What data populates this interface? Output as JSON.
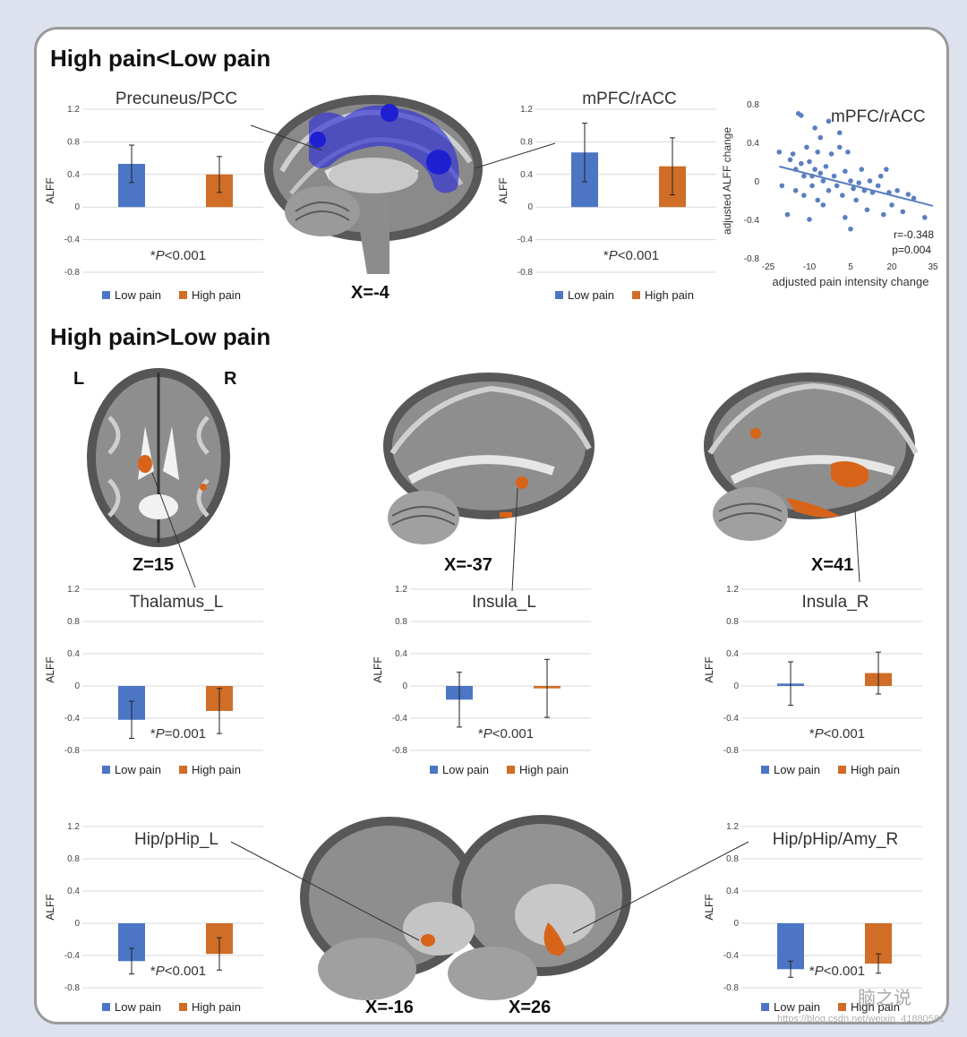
{
  "headings": {
    "top": "High pain<Low pain",
    "bottom": "High pain>Low pain"
  },
  "colors": {
    "low": "#4c76c4",
    "high": "#d06d26",
    "scatter": "#5b7fc0",
    "blob_blue": "#2324d8",
    "blob_orange": "#d8641a"
  },
  "legend": {
    "low": "Low pain",
    "high": "High pain"
  },
  "axis": {
    "ylabel": "ALFF",
    "ylim": [
      -0.8,
      1.2
    ],
    "ticks": [
      "1.2",
      "0.8",
      "0.4",
      "0",
      "-0.4",
      "-0.8"
    ]
  },
  "brain_labels": {
    "sag_top": "X=-4",
    "axial": "Z=15",
    "left": "L",
    "right": "R",
    "insL": "X=-37",
    "insR": "X=41",
    "hipL": "X=-16",
    "hipR": "X=26"
  },
  "chart_data": [
    {
      "type": "bar",
      "title": "Precuneus/PCC",
      "categories": [
        "Low pain",
        "High pain"
      ],
      "values": [
        0.53,
        0.4
      ],
      "error_bars": [
        0.23,
        0.22
      ],
      "pvalue": "P<0.001",
      "ylabel": "ALFF",
      "ylim": [
        -0.8,
        1.2
      ]
    },
    {
      "type": "bar",
      "title": "mPFC/rACC",
      "categories": [
        "Low pain",
        "High pain"
      ],
      "values": [
        0.67,
        0.5
      ],
      "error_bars": [
        0.36,
        0.35
      ],
      "pvalue": "P<0.001",
      "ylabel": "ALFF",
      "ylim": [
        -0.8,
        1.2
      ]
    },
    {
      "type": "scatter",
      "title": "mPFC/rACC",
      "xlabel": "adjusted pain intensity change",
      "ylabel": "adjusted ALFF change",
      "xlim": [
        -25,
        35
      ],
      "ylim": [
        -0.8,
        0.8
      ],
      "xticks": [
        "-25",
        "-10",
        "5",
        "20",
        "35"
      ],
      "yticks": [
        "0.8",
        "0.4",
        "0",
        "-0.4",
        "-0.8"
      ],
      "stat_r": "r=-0.348",
      "stat_p": "p=0.004",
      "points": [
        [
          -21,
          0.3
        ],
        [
          -20,
          -0.05
        ],
        [
          -18,
          -0.35
        ],
        [
          -17,
          0.22
        ],
        [
          -16,
          0.28
        ],
        [
          -15,
          0.12
        ],
        [
          -15,
          -0.1
        ],
        [
          -14,
          0.7
        ],
        [
          -13,
          0.68
        ],
        [
          -13,
          0.18
        ],
        [
          -12,
          -0.15
        ],
        [
          -12,
          0.05
        ],
        [
          -11,
          0.35
        ],
        [
          -10,
          -0.4
        ],
        [
          -10,
          0.2
        ],
        [
          -9,
          0.05
        ],
        [
          -9,
          -0.05
        ],
        [
          -8,
          0.12
        ],
        [
          -8,
          0.55
        ],
        [
          -7,
          -0.2
        ],
        [
          -7,
          0.3
        ],
        [
          -6,
          0.08
        ],
        [
          -6,
          0.45
        ],
        [
          -5,
          0.0
        ],
        [
          -5,
          -0.25
        ],
        [
          -4,
          0.15
        ],
        [
          -3,
          0.62
        ],
        [
          -3,
          -0.1
        ],
        [
          -2,
          0.28
        ],
        [
          -1,
          0.05
        ],
        [
          0,
          -0.05
        ],
        [
          1,
          0.5
        ],
        [
          1,
          0.35
        ],
        [
          2,
          -0.15
        ],
        [
          3,
          0.1
        ],
        [
          3,
          -0.38
        ],
        [
          4,
          0.3
        ],
        [
          5,
          0.0
        ],
        [
          5,
          -0.5
        ],
        [
          6,
          -0.08
        ],
        [
          7,
          -0.2
        ],
        [
          8,
          -0.02
        ],
        [
          9,
          0.12
        ],
        [
          10,
          -0.1
        ],
        [
          11,
          -0.3
        ],
        [
          12,
          0.0
        ],
        [
          13,
          -0.12
        ],
        [
          15,
          -0.05
        ],
        [
          16,
          0.05
        ],
        [
          17,
          -0.35
        ],
        [
          18,
          0.12
        ],
        [
          19,
          -0.12
        ],
        [
          20,
          -0.25
        ],
        [
          22,
          -0.1
        ],
        [
          24,
          -0.32
        ],
        [
          26,
          -0.14
        ],
        [
          28,
          -0.18
        ],
        [
          32,
          -0.38
        ]
      ],
      "fit": [
        [
          -21,
          0.15
        ],
        [
          35,
          -0.26
        ]
      ]
    },
    {
      "type": "bar",
      "title": "Thalamus_L",
      "categories": [
        "Low pain",
        "High pain"
      ],
      "values": [
        -0.42,
        -0.31
      ],
      "error_bars": [
        0.23,
        0.28
      ],
      "pvalue": "P=0.001",
      "ylabel": "ALFF",
      "ylim": [
        -0.8,
        1.2
      ]
    },
    {
      "type": "bar",
      "title": "Insula_L",
      "categories": [
        "Low pain",
        "High pain"
      ],
      "values": [
        -0.17,
        -0.03
      ],
      "error_bars": [
        0.34,
        0.36
      ],
      "pvalue": "P<0.001",
      "ylabel": "ALFF",
      "ylim": [
        -0.8,
        1.2
      ]
    },
    {
      "type": "bar",
      "title": "Insula_R",
      "categories": [
        "Low pain",
        "High pain"
      ],
      "values": [
        0.03,
        0.16
      ],
      "error_bars": [
        0.27,
        0.26
      ],
      "pvalue": "P<0.001",
      "ylabel": "ALFF",
      "ylim": [
        -0.8,
        1.2
      ]
    },
    {
      "type": "bar",
      "title": "Hip/pHip_L",
      "categories": [
        "Low pain",
        "High pain"
      ],
      "values": [
        -0.47,
        -0.38
      ],
      "error_bars": [
        0.16,
        0.2
      ],
      "pvalue": "P<0.001",
      "ylabel": "ALFF",
      "ylim": [
        -0.8,
        1.2
      ]
    },
    {
      "type": "bar",
      "title": "Hip/pHip/Amy_R",
      "categories": [
        "Low pain",
        "High pain"
      ],
      "values": [
        -0.57,
        -0.5
      ],
      "error_bars": [
        0.1,
        0.12
      ],
      "pvalue": "P<0.001",
      "ylabel": "ALFF",
      "ylim": [
        -0.8,
        1.2
      ]
    }
  ],
  "watermark": {
    "text": "https://blog.csdn.net/weixin_41880581",
    "cn": "脑之说"
  }
}
